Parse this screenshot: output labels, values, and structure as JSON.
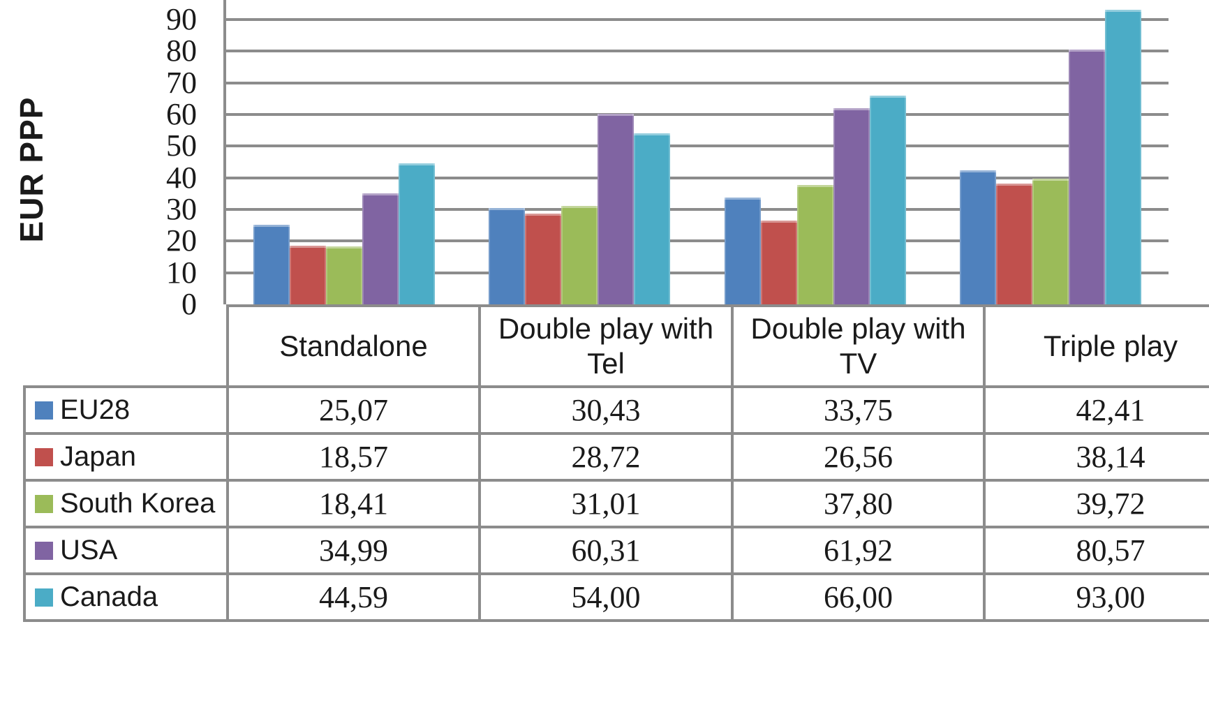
{
  "y_axis": {
    "label": "EUR PPP",
    "ticks": [
      "0",
      "10",
      "20",
      "30",
      "40",
      "50",
      "60",
      "70",
      "80",
      "90"
    ]
  },
  "colors": {
    "grid": "#8c8c8c",
    "table_border": "#8c8c8c",
    "text": "#1a1a1a",
    "background": "#ffffff"
  },
  "chart_data": {
    "type": "bar",
    "title": "",
    "xlabel": "",
    "ylabel": "EUR PPP",
    "categories": [
      "Standalone",
      "Double play with Tel",
      "Double play with TV",
      "Triple play"
    ],
    "series": [
      {
        "name": "EU28",
        "color": "#4F81BD",
        "values": [
          25.07,
          30.43,
          33.75,
          42.41
        ]
      },
      {
        "name": "Japan",
        "color": "#C0504D",
        "values": [
          18.57,
          28.72,
          26.56,
          38.14
        ]
      },
      {
        "name": "South Korea",
        "color": "#9BBB59",
        "values": [
          18.41,
          31.01,
          37.8,
          39.72
        ]
      },
      {
        "name": "USA",
        "color": "#8064A2",
        "values": [
          34.99,
          60.31,
          61.92,
          80.57
        ]
      },
      {
        "name": "Canada",
        "color": "#4BACC6",
        "values": [
          44.59,
          54.0,
          66.0,
          93.0
        ]
      }
    ],
    "y_ticks": [
      0,
      10,
      20,
      30,
      40,
      50,
      60,
      70,
      80,
      90
    ],
    "ylim": [
      0,
      96
    ],
    "grid": "horizontal-major",
    "gap_width_ratio": 1.5,
    "legend_position": "table-left-column"
  },
  "table": {
    "columns": [
      "Standalone",
      "Double play with Tel",
      "Double play with TV",
      "Triple play"
    ],
    "rows": [
      {
        "label": "EU28",
        "color": "#4F81BD",
        "values": [
          "25,07",
          "30,43",
          "33,75",
          "42,41"
        ]
      },
      {
        "label": "Japan",
        "color": "#C0504D",
        "values": [
          "18,57",
          "28,72",
          "26,56",
          "38,14"
        ]
      },
      {
        "label": "South Korea",
        "color": "#9BBB59",
        "values": [
          "18,41",
          "31,01",
          "37,80",
          "39,72"
        ]
      },
      {
        "label": "USA",
        "color": "#8064A2",
        "values": [
          "34,99",
          "60,31",
          "61,92",
          "80,57"
        ]
      },
      {
        "label": "Canada",
        "color": "#4BACC6",
        "values": [
          "44,59",
          "54,00",
          "66,00",
          "93,00"
        ]
      }
    ]
  }
}
